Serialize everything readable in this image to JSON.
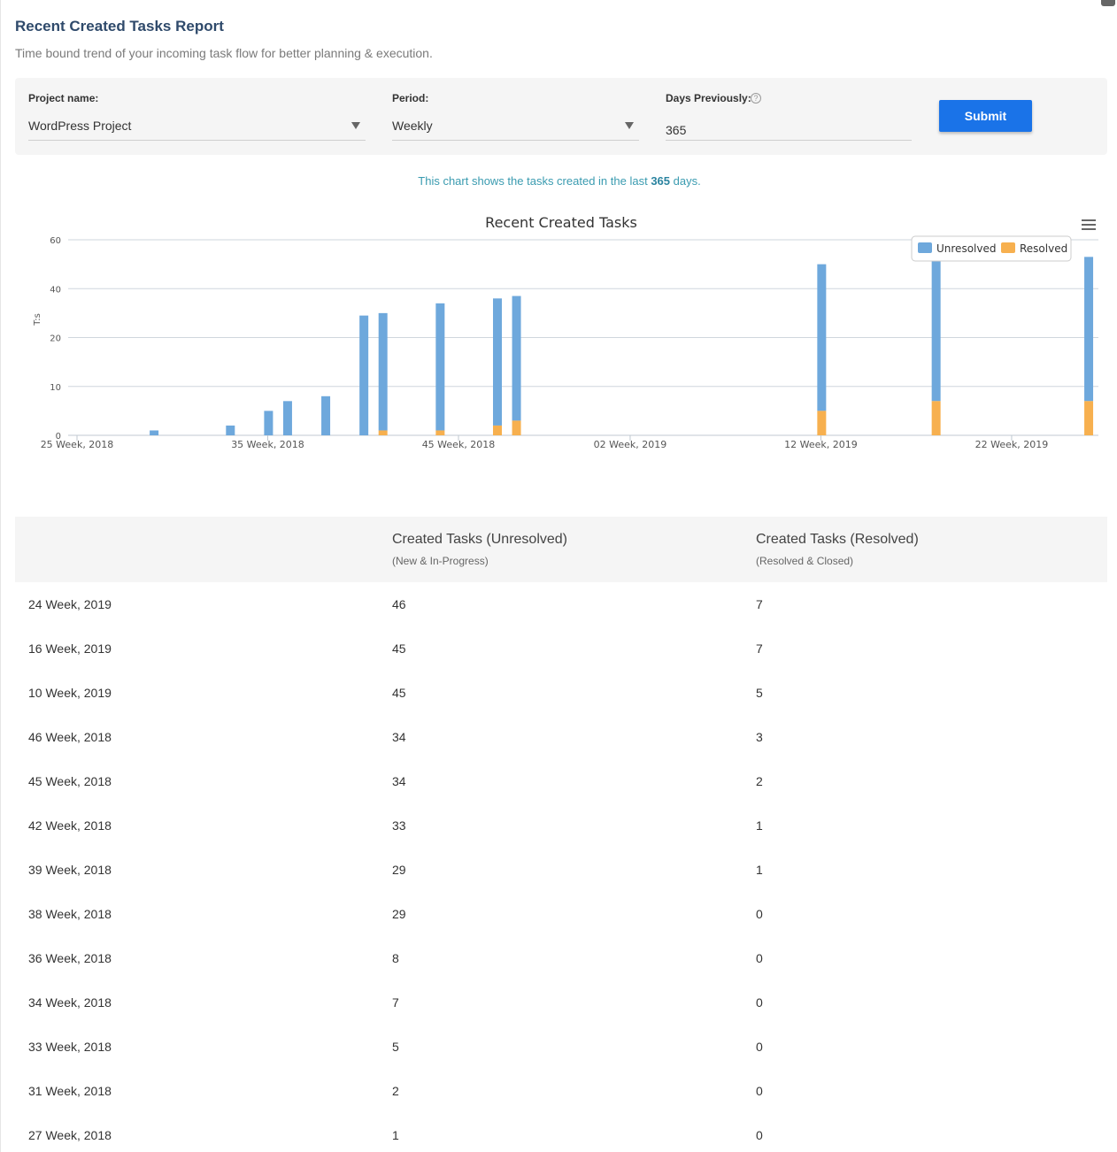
{
  "header": {
    "title": "Recent Created Tasks Report",
    "subtitle": "Time bound trend of your incoming task flow for better planning & execution."
  },
  "filters": {
    "project_label": "Project name:",
    "project_value": "WordPress Project",
    "period_label": "Period:",
    "period_value": "Weekly",
    "days_label": "Days Previously:",
    "days_value": "365",
    "help_glyph": "?",
    "submit_label": "Submit"
  },
  "info": {
    "prefix": "This chart shows the tasks created in the last",
    "days": "365",
    "suffix": "days."
  },
  "colors": {
    "unresolved": "#6ea8dc",
    "resolved": "#f7b04f",
    "grid": "#cfd6dd",
    "accent": "#1a73e8"
  },
  "chart_data": {
    "type": "bar",
    "stacked": true,
    "title": "Recent Created Tasks",
    "ylabel": "T:s",
    "ylim": [
      0,
      60
    ],
    "yticks": [
      0,
      10,
      20,
      40,
      60
    ],
    "xtick_labels": [
      "25 Week, 2018",
      "35 Week, 2018",
      "45 Week, 2018",
      "02 Week, 2019",
      "12 Week, 2019",
      "22 Week, 2019"
    ],
    "legend": {
      "position": "top-right",
      "entries": [
        "Unresolved",
        "Resolved"
      ]
    },
    "grid": true,
    "bars": [
      {
        "week": "27 Week, 2018",
        "unresolved": 1,
        "resolved": 0
      },
      {
        "week": "31 Week, 2018",
        "unresolved": 2,
        "resolved": 0
      },
      {
        "week": "33 Week, 2018",
        "unresolved": 5,
        "resolved": 0
      },
      {
        "week": "34 Week, 2018",
        "unresolved": 7,
        "resolved": 0
      },
      {
        "week": "36 Week, 2018",
        "unresolved": 8,
        "resolved": 0
      },
      {
        "week": "38 Week, 2018",
        "unresolved": 29,
        "resolved": 0
      },
      {
        "week": "39 Week, 2018",
        "unresolved": 29,
        "resolved": 1
      },
      {
        "week": "42 Week, 2018",
        "unresolved": 33,
        "resolved": 1
      },
      {
        "week": "45 Week, 2018",
        "unresolved": 34,
        "resolved": 2
      },
      {
        "week": "46 Week, 2018",
        "unresolved": 34,
        "resolved": 3
      },
      {
        "week": "10 Week, 2019",
        "unresolved": 45,
        "resolved": 5
      },
      {
        "week": "16 Week, 2019",
        "unresolved": 45,
        "resolved": 7
      },
      {
        "week": "24 Week, 2019",
        "unresolved": 46,
        "resolved": 7
      }
    ]
  },
  "table": {
    "col_unresolved": "Created Tasks (Unresolved)",
    "col_unresolved_sub": "(New & In-Progress)",
    "col_resolved": "Created Tasks (Resolved)",
    "col_resolved_sub": "(Resolved & Closed)",
    "rows": [
      {
        "week": "24 Week, 2019",
        "unresolved": "46",
        "resolved": "7"
      },
      {
        "week": "16 Week, 2019",
        "unresolved": "45",
        "resolved": "7"
      },
      {
        "week": "10 Week, 2019",
        "unresolved": "45",
        "resolved": "5"
      },
      {
        "week": "46 Week, 2018",
        "unresolved": "34",
        "resolved": "3"
      },
      {
        "week": "45 Week, 2018",
        "unresolved": "34",
        "resolved": "2"
      },
      {
        "week": "42 Week, 2018",
        "unresolved": "33",
        "resolved": "1"
      },
      {
        "week": "39 Week, 2018",
        "unresolved": "29",
        "resolved": "1"
      },
      {
        "week": "38 Week, 2018",
        "unresolved": "29",
        "resolved": "0"
      },
      {
        "week": "36 Week, 2018",
        "unresolved": "8",
        "resolved": "0"
      },
      {
        "week": "34 Week, 2018",
        "unresolved": "7",
        "resolved": "0"
      },
      {
        "week": "33 Week, 2018",
        "unresolved": "5",
        "resolved": "0"
      },
      {
        "week": "31 Week, 2018",
        "unresolved": "2",
        "resolved": "0"
      },
      {
        "week": "27 Week, 2018",
        "unresolved": "1",
        "resolved": "0"
      }
    ]
  }
}
